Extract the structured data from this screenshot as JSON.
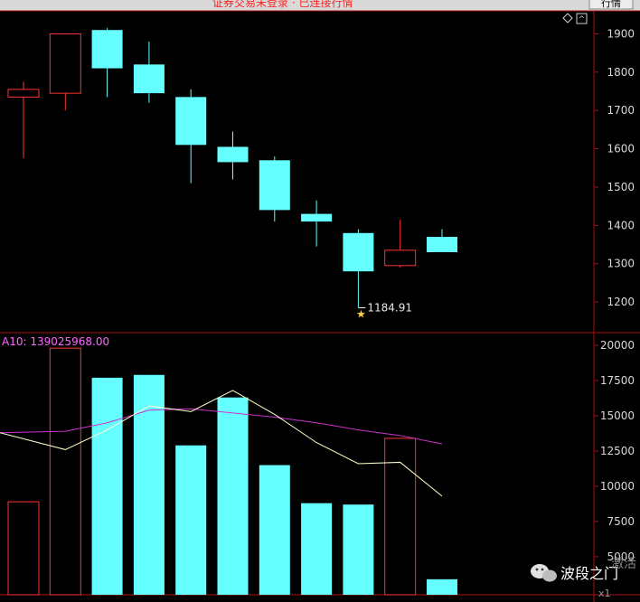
{
  "header": {
    "top_text": "证券交易未登录 · 已连接行情",
    "tab_label": "行情"
  },
  "watermark": {
    "brand": "波段之门",
    "side_text": "激活",
    "corner_text": "x1"
  },
  "chart_data": [
    {
      "type": "candlestick",
      "y_ticks": [
        1200,
        1300,
        1400,
        1500,
        1600,
        1700,
        1800,
        1900
      ],
      "ylim": [
        1120,
        1960
      ],
      "grid": false,
      "colors": {
        "up": "#ff3333",
        "down": "#66ffff"
      },
      "candles": [
        {
          "open": 1735,
          "close": 1755,
          "high": 1775,
          "low": 1575,
          "dir": "up"
        },
        {
          "open": 1745,
          "close": 1900,
          "high": 1900,
          "low": 1700,
          "dir": "up"
        },
        {
          "open": 1910,
          "close": 1810,
          "high": 1915,
          "low": 1735,
          "dir": "down"
        },
        {
          "open": 1820,
          "close": 1745,
          "high": 1880,
          "low": 1720,
          "dir": "down"
        },
        {
          "open": 1735,
          "close": 1610,
          "high": 1755,
          "low": 1510,
          "dir": "down"
        },
        {
          "open": 1605,
          "close": 1565,
          "high": 1645,
          "low": 1520,
          "dir": "down"
        },
        {
          "open": 1570,
          "close": 1440,
          "high": 1580,
          "low": 1410,
          "dir": "down"
        },
        {
          "open": 1430,
          "close": 1410,
          "high": 1465,
          "low": 1345,
          "dir": "down"
        },
        {
          "open": 1380,
          "close": 1280,
          "high": 1390,
          "low": 1185,
          "dir": "down"
        },
        {
          "open": 1295,
          "close": 1335,
          "high": 1415,
          "low": 1290,
          "dir": "up"
        },
        {
          "open": 1370,
          "close": 1330,
          "high": 1390,
          "low": 1330,
          "dir": "down"
        }
      ],
      "annotation": {
        "label": "1184.91",
        "value": 1184.91,
        "candle_index": 8
      }
    },
    {
      "type": "bar",
      "label": "A10: 139025968.00",
      "y_ticks": [
        5000,
        7500,
        10000,
        12500,
        15000,
        17500,
        20000
      ],
      "ylim": [
        2300,
        20900
      ],
      "values": [
        8900,
        19800,
        17700,
        17900,
        12900,
        16300,
        11500,
        8800,
        8700,
        13400,
        3400
      ],
      "dir": [
        "up",
        "up",
        "down",
        "down",
        "down",
        "down",
        "down",
        "down",
        "down",
        "up",
        "down"
      ],
      "ma_short": {
        "color": "#ffffcc",
        "values": [
          13800,
          12600,
          14000,
          15700,
          15300,
          16800,
          15100,
          13100,
          11600,
          11700,
          9300
        ]
      },
      "ma_long": {
        "color": "#cc33cc",
        "values": [
          13800,
          13900,
          14500,
          15400,
          15500,
          15200,
          14900,
          14500,
          14000,
          13600,
          13000
        ]
      }
    }
  ]
}
